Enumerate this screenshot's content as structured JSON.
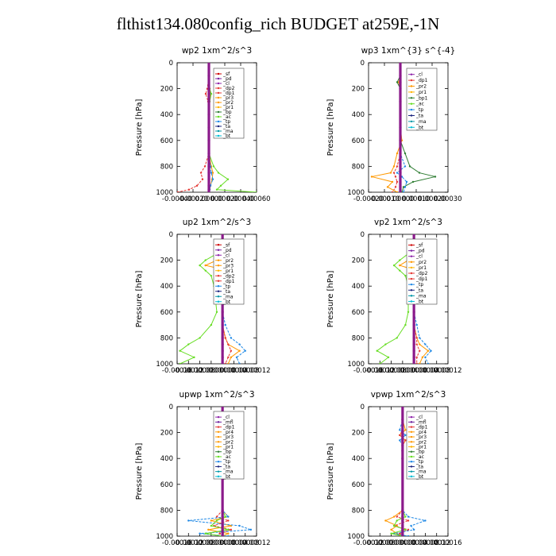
{
  "figure": {
    "title": "flthist134.080config_rich  BUDGET at259E,-1N"
  },
  "colors": {
    "sf": "#cc0000",
    "pd": "#7a1fa2",
    "cl": "#8e24aa",
    "dp": "#e53935",
    "pr": "#ff9800",
    "pr1": "#ffb300",
    "bp": "#2e7d32",
    "ac": "#66dd22",
    "tp": "#1e88e5",
    "ta": "#1a237e",
    "ma": "#0097a7",
    "bt": "#00bcd4",
    "mfl": "#6a1b9a",
    "total": "#8b1a8b"
  },
  "chart_data": [
    {
      "type": "line",
      "title": "wp2   1xm^2/s^3",
      "ylabel": "Pressure [hPa]",
      "xlim": [
        -0.0004,
        0.0006
      ],
      "ylim": [
        1000,
        0
      ],
      "xticks": [
        "-0.00040",
        "-0.00020",
        "0.00000",
        "0.00020",
        "0.00040",
        "0.00060"
      ],
      "yticks": [
        "0",
        "200",
        "400",
        "600",
        "800",
        "1000"
      ],
      "legend": {
        "position": "top-right",
        "entries": [
          "_sf",
          "_pd",
          "_cl",
          "_dp2",
          "_dp1",
          "_pr3",
          "_pr2",
          "_pr1",
          "_bp",
          "_ac",
          "_tp",
          "_ta",
          "_ma",
          "_bt"
        ]
      },
      "pressure": [
        0,
        100,
        200,
        240,
        300,
        400,
        500,
        600,
        700,
        800,
        850,
        900,
        950,
        980,
        1000
      ],
      "series": [
        {
          "key": "sf",
          "values": [
            0,
            0,
            0,
            0,
            0,
            0,
            0,
            0,
            0,
            0,
            0,
            0,
            0,
            0,
            0
          ]
        },
        {
          "key": "dp",
          "values": [
            0,
            0,
            -2e-05,
            -4e-05,
            -1e-05,
            0,
            0,
            0,
            0,
            -5e-05,
            -0.0001,
            -8e-05,
            -0.00015,
            -0.00025,
            -0.0004
          ]
        },
        {
          "key": "pr",
          "values": [
            0,
            0,
            1e-05,
            2e-05,
            0,
            0,
            0,
            0,
            0,
            3e-05,
            5e-05,
            4e-05,
            2e-05,
            1e-05,
            0
          ]
        },
        {
          "key": "ac",
          "values": [
            0,
            0,
            1e-05,
            3e-05,
            1e-05,
            0,
            0,
            0,
            0,
            6e-05,
            0.00012,
            0.00024,
            0.00015,
            0.0001,
            0.0006
          ]
        },
        {
          "key": "tp",
          "values": [
            0,
            0,
            0,
            1e-05,
            0,
            0,
            0,
            0,
            0,
            2e-05,
            3e-05,
            5e-05,
            2e-05,
            1e-05,
            0
          ]
        },
        {
          "key": "total",
          "values": [
            0,
            0,
            0,
            0,
            0,
            0,
            0,
            0,
            0,
            0,
            0,
            0,
            0,
            0,
            0
          ]
        }
      ]
    },
    {
      "type": "line",
      "title": "wp3   1xm^{3} s^{-4}",
      "ylabel": "Pressure [hPa]",
      "xlim": [
        -0.0002,
        0.0003
      ],
      "ylim": [
        1000,
        0
      ],
      "xticks": [
        "-0.00020",
        "-0.00010",
        "0.00000",
        "0.00010",
        "0.00020",
        "0.00030"
      ],
      "yticks": [
        "0",
        "200",
        "400",
        "600",
        "800",
        "1000"
      ],
      "legend": {
        "position": "top-right",
        "entries": [
          "_cl",
          "_dp1",
          "_pr2",
          "_pr1",
          "_bp1",
          "_ac",
          "_tp",
          "_ta",
          "_ma",
          "_bt"
        ]
      },
      "pressure": [
        0,
        100,
        150,
        200,
        300,
        500,
        600,
        700,
        800,
        850,
        880,
        920,
        960,
        1000
      ],
      "series": [
        {
          "key": "cl",
          "values": [
            0,
            0,
            0,
            0,
            0,
            0,
            0,
            0,
            0,
            0,
            0,
            0,
            0,
            0
          ]
        },
        {
          "key": "dp",
          "values": [
            0,
            0,
            -1e-05,
            0,
            0,
            0,
            0,
            0,
            -2e-05,
            -4e-05,
            -3e-05,
            -2e-05,
            -3e-05,
            -5e-05
          ]
        },
        {
          "key": "pr",
          "values": [
            0,
            0,
            -1e-05,
            0,
            0,
            0,
            1e-05,
            -2e-05,
            -4e-05,
            -6e-05,
            -0.00018,
            -5e-05,
            -8e-05,
            -2e-05
          ]
        },
        {
          "key": "bp",
          "values": [
            0,
            0,
            -2e-05,
            0,
            0,
            0,
            0,
            3e-05,
            6e-05,
            0.00012,
            0.00022,
            8e-05,
            2e-05,
            1e-05
          ]
        },
        {
          "key": "tp",
          "values": [
            0,
            0,
            0,
            0,
            0,
            0,
            0,
            0,
            3e-05,
            -2e-05,
            1e-05,
            4e-05,
            3e-05,
            2e-05
          ]
        },
        {
          "key": "total",
          "values": [
            0,
            0,
            0,
            0,
            0,
            0,
            0,
            0,
            0,
            0,
            0,
            0,
            0,
            0
          ]
        }
      ]
    },
    {
      "type": "line",
      "title": "up2   1xm^2/s^3",
      "ylabel": "Pressure [hPa]",
      "xlim": [
        -0.00016,
        0.00012
      ],
      "ylim": [
        1000,
        0
      ],
      "xticks": [
        "-0.00016",
        "-0.00012",
        "-0.00008",
        "-0.00004",
        "0.00000",
        "0.00004",
        "0.00008",
        "0.00012"
      ],
      "yticks": [
        "0",
        "200",
        "400",
        "600",
        "800",
        "1000"
      ],
      "legend": {
        "position": "top-right",
        "entries": [
          "_sf",
          "_pd",
          "_cl",
          "_pr2",
          "_pr3",
          "_pr1",
          "_dp2",
          "_dp1",
          "_tp",
          "_ta",
          "_ma",
          "_bt"
        ]
      },
      "pressure": [
        0,
        100,
        150,
        200,
        240,
        280,
        320,
        400,
        600,
        700,
        800,
        850,
        900,
        950,
        1000
      ],
      "series": [
        {
          "key": "sf",
          "values": [
            0,
            0,
            0,
            0,
            0,
            0,
            0,
            0,
            0,
            0,
            0,
            0,
            0,
            0,
            0
          ]
        },
        {
          "key": "pr",
          "values": [
            0,
            0,
            1e-05,
            -2e-05,
            -6e-05,
            2e-05,
            1e-05,
            0,
            0,
            0,
            1e-05,
            2e-05,
            6e-05,
            3e-05,
            2e-05
          ]
        },
        {
          "key": "ac",
          "values": [
            0,
            0,
            -2e-05,
            -6e-05,
            -8e-05,
            -6e-05,
            -4e-05,
            -3e-05,
            -2e-05,
            -4e-05,
            -8e-05,
            -0.00012,
            -0.00015,
            -0.0001,
            -0.00015
          ]
        },
        {
          "key": "tp",
          "values": [
            0,
            0,
            2e-05,
            4e-05,
            5e-05,
            3e-05,
            1e-05,
            0,
            0,
            1e-05,
            3e-05,
            6e-05,
            8e-05,
            5e-05,
            6e-05
          ]
        },
        {
          "key": "dp",
          "values": [
            0,
            0,
            0,
            -1e-05,
            -2e-05,
            0,
            0,
            0,
            0,
            0,
            1e-05,
            2e-05,
            3e-05,
            2e-05,
            1e-05
          ]
        },
        {
          "key": "total",
          "values": [
            0,
            0,
            0,
            0,
            0,
            0,
            0,
            0,
            0,
            0,
            0,
            0,
            0,
            0,
            0
          ]
        }
      ]
    },
    {
      "type": "line",
      "title": "vp2   1xm^2/s^3",
      "ylabel": "Pressure [hPa]",
      "xlim": [
        -0.00016,
        0.00012
      ],
      "ylim": [
        1000,
        0
      ],
      "xticks": [
        "-0.00016",
        "-0.00012",
        "-0.00008",
        "-0.00004",
        "0.00000",
        "0.00004",
        "0.00008",
        "0.00012"
      ],
      "yticks": [
        "0",
        "200",
        "400",
        "600",
        "800",
        "1000"
      ],
      "legend": {
        "position": "top-right",
        "entries": [
          "_sf",
          "_pd",
          "_cl",
          "_pr2",
          "_pr1",
          "_dp2",
          "_dp1",
          "_tp",
          "_ta",
          "_ma",
          "_bt"
        ]
      },
      "pressure": [
        0,
        100,
        150,
        200,
        240,
        280,
        320,
        400,
        600,
        700,
        800,
        850,
        900,
        950,
        1000
      ],
      "series": [
        {
          "key": "sf",
          "values": [
            0,
            0,
            0,
            0,
            0,
            0,
            0,
            0,
            0,
            0,
            0,
            0,
            0,
            0,
            0
          ]
        },
        {
          "key": "pr",
          "values": [
            0,
            0,
            1e-05,
            -2e-05,
            -5e-05,
            1e-05,
            1e-05,
            0,
            0,
            0,
            1e-05,
            2e-05,
            5e-05,
            3e-05,
            2e-05
          ]
        },
        {
          "key": "ac",
          "values": [
            0,
            0,
            -2e-05,
            -5e-05,
            -7e-05,
            -5e-05,
            -3e-05,
            -2e-05,
            -2e-05,
            -3e-05,
            -6e-05,
            -0.0001,
            -0.00013,
            -9e-05,
            -0.00012
          ]
        },
        {
          "key": "tp",
          "values": [
            0,
            0,
            1e-05,
            3e-05,
            4e-05,
            2e-05,
            1e-05,
            0,
            0,
            1e-05,
            2e-05,
            4e-05,
            6e-05,
            4e-05,
            5e-05
          ]
        },
        {
          "key": "dp",
          "values": [
            0,
            0,
            0,
            -1e-05,
            -1e-05,
            0,
            0,
            0,
            0,
            0,
            1e-05,
            1e-05,
            2e-05,
            1e-05,
            1e-05
          ]
        },
        {
          "key": "total",
          "values": [
            0,
            0,
            0,
            0,
            0,
            0,
            0,
            0,
            0,
            0,
            0,
            0,
            0,
            0,
            0
          ]
        }
      ]
    },
    {
      "type": "line",
      "title": "upwp   1xm^2/s^3",
      "ylabel": "Pressure [hPa]",
      "xlim": [
        -0.00016,
        0.00012
      ],
      "ylim": [
        1000,
        0
      ],
      "xticks": [
        "-0.00016",
        "-0.00012",
        "-0.00008",
        "-0.00004",
        "0.00000",
        "0.00004",
        "0.00008",
        "0.00012"
      ],
      "yticks": [
        "0",
        "200",
        "400",
        "600",
        "800",
        "1000"
      ],
      "legend": {
        "position": "top-right",
        "entries": [
          "_cl",
          "_mfl",
          "_dp1",
          "_pr4",
          "_pr3",
          "_pr2",
          "_pr1",
          "_bp",
          "_ac",
          "_tp",
          "_ta",
          "_ma",
          "_bt"
        ]
      },
      "pressure": [
        0,
        100,
        180,
        220,
        260,
        300,
        340,
        400,
        800,
        850,
        880,
        920,
        950,
        980,
        1000
      ],
      "series": [
        {
          "key": "cl",
          "values": [
            0,
            0,
            0,
            0,
            0,
            0,
            0,
            0,
            0,
            0,
            0,
            0,
            0,
            0,
            0
          ]
        },
        {
          "key": "pr",
          "values": [
            0,
            0,
            1e-05,
            -2e-05,
            1e-05,
            0,
            0,
            0,
            0,
            2e-05,
            -4e-05,
            3e-05,
            -5e-05,
            2e-05,
            0
          ]
        },
        {
          "key": "dp",
          "values": [
            0,
            0,
            0,
            -1e-05,
            1e-05,
            0,
            0,
            0,
            0,
            -2e-05,
            2e-05,
            -3e-05,
            3e-05,
            -1e-05,
            0
          ]
        },
        {
          "key": "tp",
          "values": [
            0,
            0,
            1e-05,
            2e-05,
            -2e-05,
            1e-05,
            -1e-05,
            0,
            0,
            2e-05,
            -0.00012,
            6e-05,
            0.0001,
            -8e-05,
            2e-05
          ]
        },
        {
          "key": "ac",
          "values": [
            0,
            0,
            0,
            0,
            0,
            0,
            0,
            0,
            0,
            1e-05,
            -2e-05,
            -4e-05,
            2e-05,
            -6e-05,
            0
          ]
        },
        {
          "key": "total",
          "values": [
            0,
            0,
            0,
            0,
            0,
            0,
            0,
            0,
            0,
            0,
            0,
            0,
            0,
            0,
            0
          ]
        }
      ]
    },
    {
      "type": "line",
      "title": "vpwp   1xm^2/s^3",
      "ylabel": "Pressure [hPa]",
      "xlim": [
        -0.00012,
        0.00016
      ],
      "ylim": [
        1000,
        0
      ],
      "xticks": [
        "-0.00012",
        "-0.00008",
        "-0.00004",
        "0.00000",
        "0.00004",
        "0.00008",
        "0.00012",
        "0.00016"
      ],
      "yticks": [
        "0",
        "200",
        "400",
        "600",
        "800",
        "1000"
      ],
      "legend": {
        "position": "top-right",
        "entries": [
          "_cl",
          "_mfl",
          "_dp1",
          "_pr4",
          "_pr3",
          "_pr2",
          "_pr1",
          "_bp",
          "_ac",
          "_tp",
          "_ta",
          "_ma",
          "_bt"
        ]
      },
      "pressure": [
        0,
        100,
        180,
        220,
        260,
        300,
        340,
        400,
        800,
        850,
        880,
        920,
        950,
        980,
        1000
      ],
      "series": [
        {
          "key": "cl",
          "values": [
            0,
            0,
            0,
            0,
            0,
            0,
            0,
            0,
            0,
            0,
            0,
            0,
            0,
            0,
            0
          ]
        },
        {
          "key": "pr",
          "values": [
            0,
            0,
            1e-05,
            -1e-05,
            1e-05,
            0,
            0,
            0,
            0,
            -3e-05,
            -6e-05,
            -2e-05,
            -4e-05,
            -2e-05,
            0
          ]
        },
        {
          "key": "dp",
          "values": [
            0,
            0,
            0,
            -1e-05,
            1e-05,
            0,
            0,
            0,
            0,
            -2e-05,
            2e-05,
            -3e-05,
            2e-05,
            -1e-05,
            0
          ]
        },
        {
          "key": "tp",
          "values": [
            0,
            0,
            -1e-05,
            1e-05,
            -1e-05,
            0,
            0,
            0,
            0,
            2e-05,
            8e-05,
            3e-05,
            4e-05,
            -3e-05,
            2e-05
          ]
        },
        {
          "key": "ac",
          "values": [
            0,
            0,
            0,
            0,
            0,
            0,
            0,
            0,
            0,
            1e-05,
            -2e-05,
            -3e-05,
            1e-05,
            -4e-05,
            0
          ]
        },
        {
          "key": "total",
          "values": [
            0,
            0,
            0,
            0,
            0,
            0,
            0,
            0,
            0,
            0,
            0,
            0,
            0,
            0,
            0
          ]
        }
      ]
    }
  ]
}
